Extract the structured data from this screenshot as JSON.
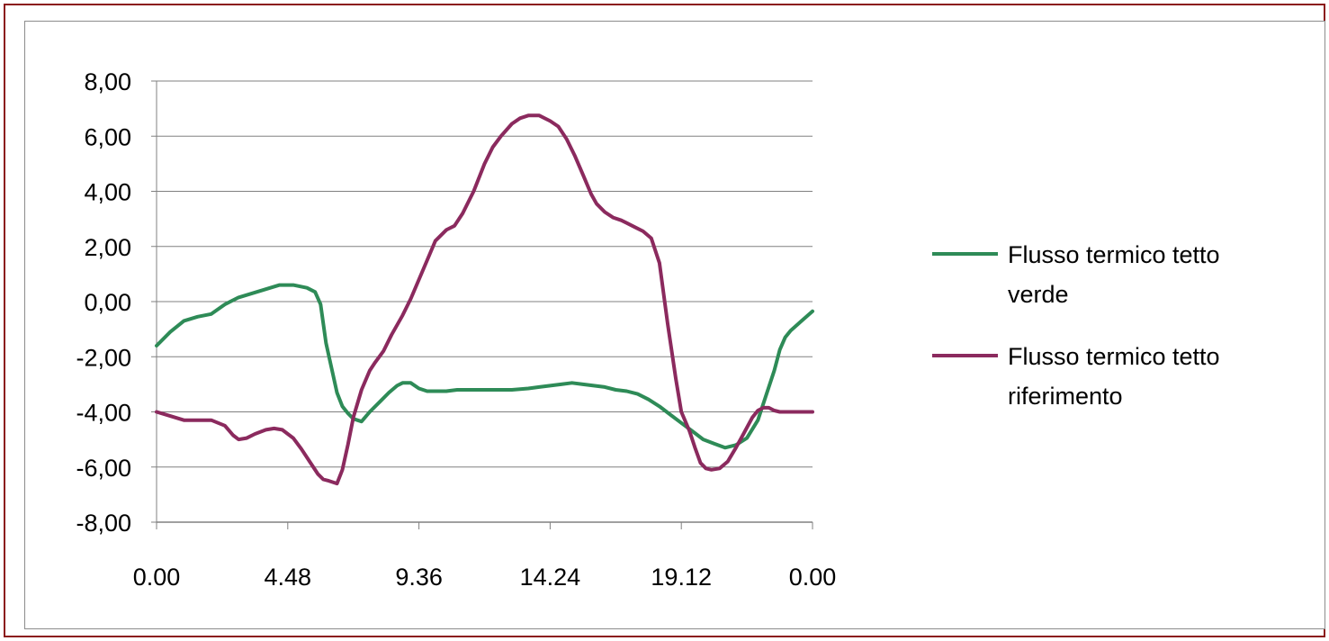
{
  "colors": {
    "frame_border": "#8b1a1a",
    "gridline": "#808080",
    "series_verde": "#2e8b57",
    "series_riferimento": "#8b2a5e"
  },
  "chart_data": {
    "type": "line",
    "title": "",
    "xlabel": "",
    "ylabel": "",
    "ylim": [
      -8,
      8
    ],
    "y_ticks": [
      "8,00",
      "6,00",
      "4,00",
      "2,00",
      "0,00",
      "-2,00",
      "-4,00",
      "-6,00",
      "-8,00"
    ],
    "x_tick_labels": [
      "0.00",
      "4.48",
      "9.36",
      "14.24",
      "19.12",
      "0.00"
    ],
    "x_range_hours": [
      0,
      24
    ],
    "grid": "horizontal",
    "legend_position": "right",
    "series": [
      {
        "name": "Flusso termico tetto verde",
        "color": "#2e8b57",
        "x": [
          0,
          0.5,
          1,
          1.5,
          2,
          2.5,
          3,
          3.5,
          4,
          4.5,
          5,
          5.5,
          5.8,
          6,
          6.2,
          6.4,
          6.6,
          6.8,
          7,
          7.2,
          7.5,
          7.8,
          8.2,
          8.5,
          8.8,
          9,
          9.3,
          9.6,
          9.9,
          10.2,
          10.6,
          11,
          11.4,
          12,
          12.6,
          13,
          13.6,
          14,
          14.4,
          14.8,
          15.2,
          15.6,
          16,
          16.4,
          16.8,
          17.2,
          17.6,
          18,
          18.4,
          18.8,
          19.2,
          19.6,
          20,
          20.4,
          20.8,
          21.2,
          21.6,
          22,
          22.3,
          22.6,
          22.8,
          23,
          23.2,
          23.6,
          24
        ],
        "y": [
          -1.6,
          -1.1,
          -0.7,
          -0.55,
          -0.45,
          -0.1,
          0.15,
          0.3,
          0.45,
          0.6,
          0.6,
          0.5,
          0.35,
          -0.1,
          -1.5,
          -2.4,
          -3.3,
          -3.8,
          -4.05,
          -4.25,
          -4.35,
          -4.0,
          -3.6,
          -3.3,
          -3.05,
          -2.95,
          -2.95,
          -3.15,
          -3.25,
          -3.25,
          -3.25,
          -3.2,
          -3.2,
          -3.2,
          -3.2,
          -3.2,
          -3.15,
          -3.1,
          -3.05,
          -3.0,
          -2.95,
          -3.0,
          -3.05,
          -3.1,
          -3.2,
          -3.25,
          -3.35,
          -3.55,
          -3.8,
          -4.1,
          -4.4,
          -4.7,
          -5.0,
          -5.15,
          -5.3,
          -5.2,
          -4.95,
          -4.3,
          -3.4,
          -2.5,
          -1.75,
          -1.3,
          -1.05,
          -0.7,
          -0.35
        ]
      },
      {
        "name": "Flusso termico tetto riferimento",
        "color": "#8b2a5e",
        "x": [
          0,
          0.5,
          1,
          1.5,
          2,
          2.5,
          2.8,
          3,
          3.3,
          3.6,
          4,
          4.3,
          4.6,
          5,
          5.3,
          5.6,
          5.9,
          6.1,
          6.3,
          6.6,
          6.8,
          7,
          7.2,
          7.5,
          7.8,
          8,
          8.3,
          8.6,
          9,
          9.3,
          9.6,
          9.9,
          10.2,
          10.6,
          10.9,
          11.2,
          11.6,
          12,
          12.3,
          12.6,
          13,
          13.3,
          13.6,
          14,
          14.4,
          14.7,
          15,
          15.3,
          15.6,
          15.9,
          16.1,
          16.4,
          16.7,
          17,
          17.2,
          17.5,
          17.8,
          18.1,
          18.4,
          18.7,
          19,
          19.2,
          19.5,
          19.7,
          19.9,
          20.1,
          20.3,
          20.6,
          20.9,
          21.2,
          21.5,
          21.8,
          22,
          22.2,
          22.4,
          22.6,
          22.8,
          23,
          23.2,
          23.5,
          23.8,
          24
        ],
        "y": [
          -4.0,
          -4.15,
          -4.3,
          -4.3,
          -4.3,
          -4.5,
          -4.85,
          -5.0,
          -4.95,
          -4.8,
          -4.65,
          -4.6,
          -4.65,
          -4.95,
          -5.35,
          -5.8,
          -6.25,
          -6.45,
          -6.5,
          -6.6,
          -6.1,
          -5.2,
          -4.2,
          -3.2,
          -2.5,
          -2.2,
          -1.8,
          -1.2,
          -0.5,
          0.1,
          0.8,
          1.5,
          2.2,
          2.6,
          2.75,
          3.2,
          4.0,
          5.0,
          5.6,
          6.0,
          6.45,
          6.65,
          6.75,
          6.75,
          6.55,
          6.35,
          5.9,
          5.3,
          4.6,
          3.9,
          3.55,
          3.25,
          3.05,
          2.95,
          2.85,
          2.7,
          2.55,
          2.3,
          1.4,
          -0.8,
          -2.8,
          -4.0,
          -4.7,
          -5.3,
          -5.85,
          -6.05,
          -6.1,
          -6.05,
          -5.8,
          -5.3,
          -4.75,
          -4.2,
          -3.95,
          -3.85,
          -3.85,
          -3.95,
          -4.0,
          -4.0,
          -4.0,
          -4.0,
          -4.0,
          -4.0
        ]
      }
    ]
  }
}
